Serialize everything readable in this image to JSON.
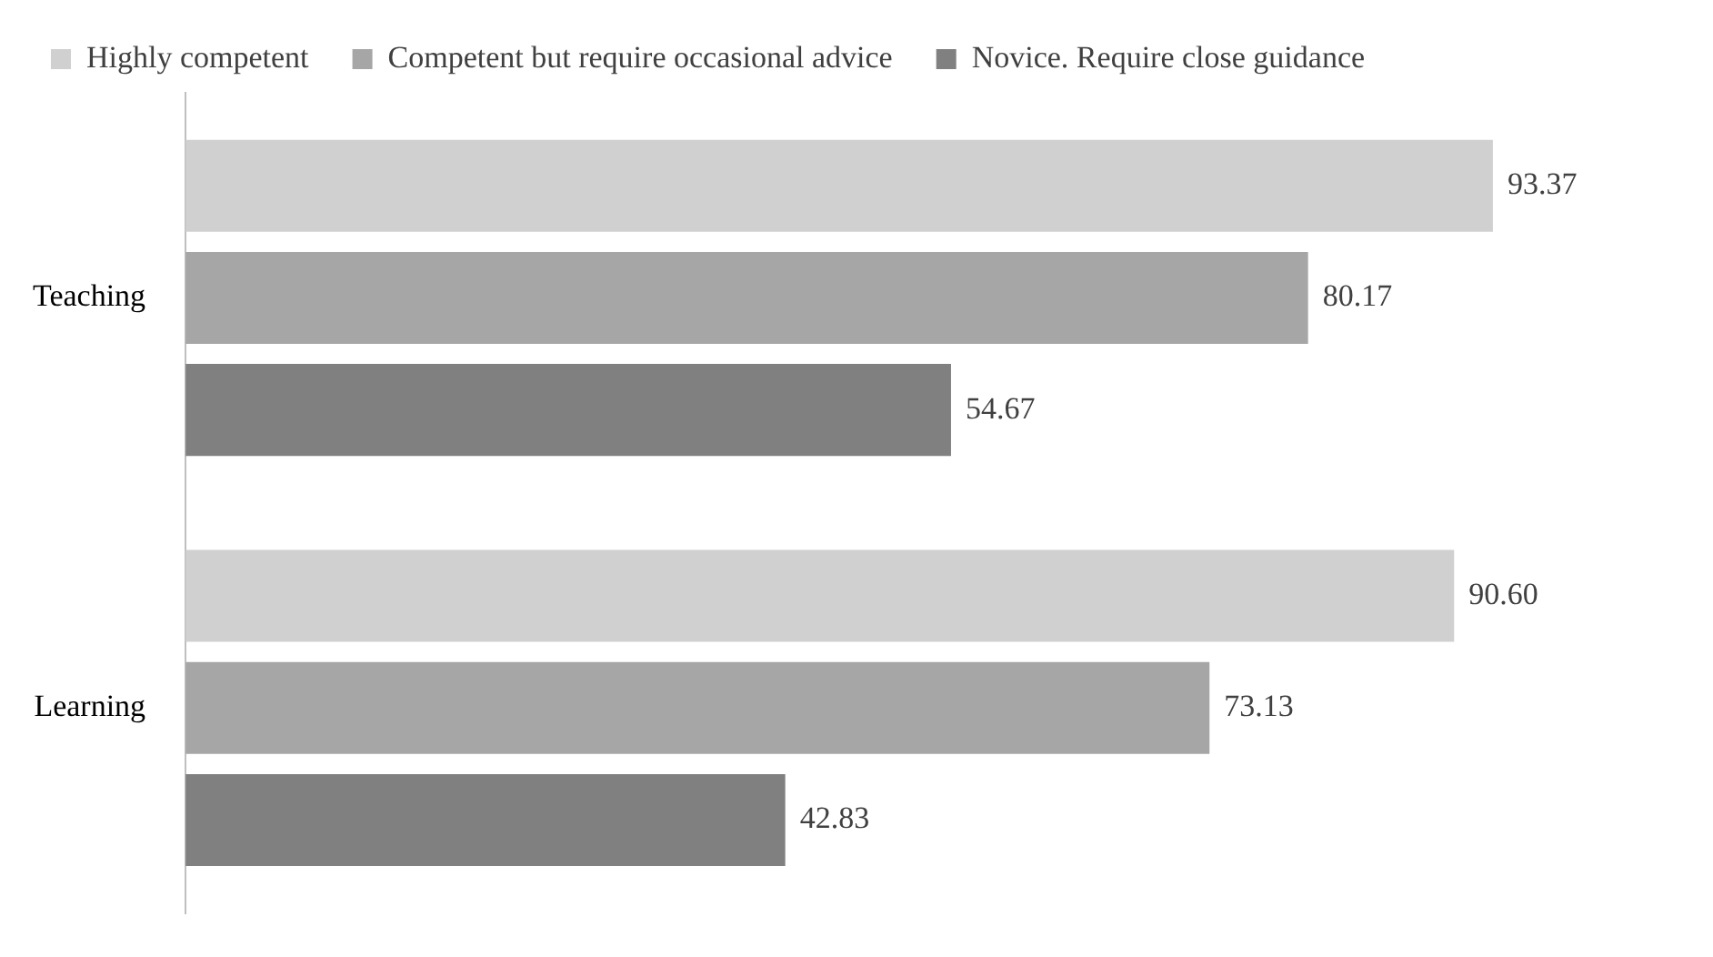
{
  "chart_data": {
    "type": "bar",
    "orientation": "horizontal",
    "categories": [
      "Teaching",
      "Learning"
    ],
    "series": [
      {
        "name": "Highly competent",
        "color": "#d0d0d0",
        "values": [
          93.37,
          90.6
        ],
        "value_labels": [
          "93.37",
          "90.60"
        ]
      },
      {
        "name": "Competent but require occasional advice",
        "color": "#a6a6a6",
        "values": [
          80.17,
          73.13
        ],
        "value_labels": [
          "80.17",
          "73.13"
        ]
      },
      {
        "name": "Novice. Require close guidance",
        "color": "#808080",
        "values": [
          54.67,
          42.83
        ],
        "value_labels": [
          "54.67",
          "42.83"
        ]
      }
    ],
    "tick_labels": "y",
    "grid": false,
    "legend": "top left"
  }
}
